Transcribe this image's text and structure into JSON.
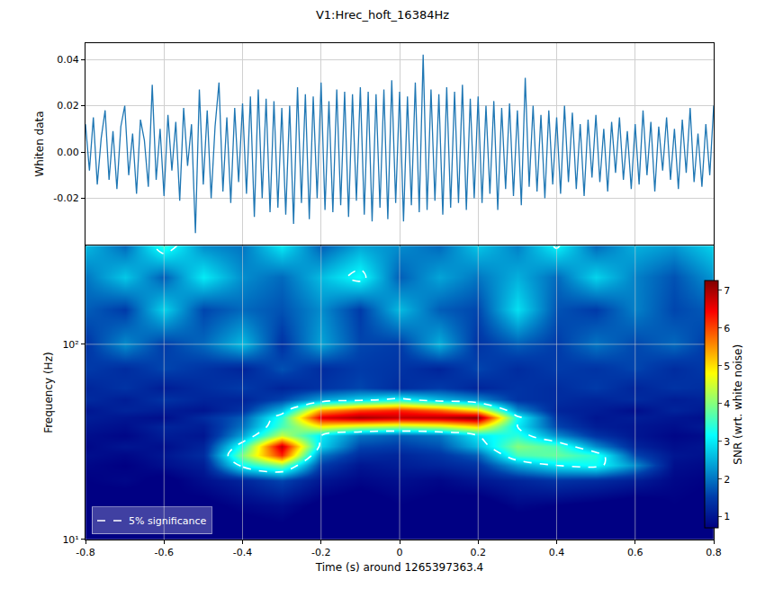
{
  "chart_data": [
    {
      "type": "line",
      "title": "V1:Hrec_hoft_16384Hz",
      "y_label": "Whiten data",
      "color": "#1f77b4",
      "x": [
        -0.8,
        -0.79,
        -0.78,
        -0.77,
        -0.76,
        -0.75,
        -0.74,
        -0.73,
        -0.72,
        -0.71,
        -0.7,
        -0.69,
        -0.68,
        -0.67,
        -0.66,
        -0.65,
        -0.64,
        -0.63,
        -0.62,
        -0.61,
        -0.6,
        -0.59,
        -0.58,
        -0.57,
        -0.56,
        -0.55,
        -0.54,
        -0.53,
        -0.52,
        -0.51,
        -0.5,
        -0.49,
        -0.48,
        -0.47,
        -0.46,
        -0.45,
        -0.44,
        -0.43,
        -0.42,
        -0.41,
        -0.4,
        -0.39,
        -0.38,
        -0.37,
        -0.36,
        -0.35,
        -0.34,
        -0.33,
        -0.32,
        -0.31,
        -0.3,
        -0.29,
        -0.28,
        -0.27,
        -0.26,
        -0.25,
        -0.24,
        -0.23,
        -0.22,
        -0.21,
        -0.2,
        -0.19,
        -0.18,
        -0.17,
        -0.16,
        -0.15,
        -0.14,
        -0.13,
        -0.12,
        -0.11,
        -0.1,
        -0.09,
        -0.08,
        -0.07,
        -0.06,
        -0.05,
        -0.04,
        -0.03,
        -0.02,
        -0.01,
        0,
        0.01,
        0.02,
        0.03,
        0.04,
        0.05,
        0.06,
        0.07,
        0.08,
        0.09,
        0.1,
        0.11,
        0.12,
        0.13,
        0.14,
        0.15,
        0.16,
        0.17,
        0.18,
        0.19,
        0.2,
        0.21,
        0.22,
        0.23,
        0.24,
        0.25,
        0.26,
        0.27,
        0.28,
        0.29,
        0.3,
        0.31,
        0.32,
        0.33,
        0.34,
        0.35,
        0.36,
        0.37,
        0.38,
        0.39,
        0.4,
        0.41,
        0.42,
        0.43,
        0.44,
        0.45,
        0.46,
        0.47,
        0.48,
        0.49,
        0.5,
        0.51,
        0.52,
        0.53,
        0.54,
        0.55,
        0.56,
        0.57,
        0.58,
        0.59,
        0.6,
        0.61,
        0.62,
        0.63,
        0.64,
        0.65,
        0.66,
        0.67,
        0.68,
        0.69,
        0.7,
        0.71,
        0.72,
        0.73,
        0.74,
        0.75,
        0.76,
        0.77,
        0.78,
        0.79,
        0.8
      ],
      "values": [
        0.012,
        -0.008,
        0.015,
        -0.014,
        0.006,
        0.018,
        -0.012,
        0.009,
        -0.016,
        0.011,
        0.02,
        -0.01,
        0.008,
        -0.018,
        0.014,
        0.005,
        -0.015,
        0.029,
        -0.012,
        0.01,
        -0.019,
        0.016,
        -0.008,
        0.013,
        -0.021,
        0.019,
        -0.006,
        0.012,
        -0.035,
        0.027,
        -0.014,
        0.018,
        -0.02,
        0.011,
        0.03,
        -0.017,
        0.015,
        -0.022,
        0.019,
        -0.013,
        0.021,
        -0.018,
        0.024,
        -0.028,
        0.027,
        -0.02,
        0.023,
        -0.026,
        0.022,
        -0.024,
        0.019,
        -0.027,
        0.02,
        -0.031,
        0.028,
        -0.022,
        0.025,
        -0.029,
        0.024,
        -0.02,
        0.03,
        -0.025,
        0.022,
        -0.026,
        0.027,
        -0.023,
        0.026,
        -0.028,
        0.025,
        -0.021,
        0.028,
        -0.027,
        0.026,
        -0.03,
        0.025,
        -0.024,
        0.027,
        -0.029,
        0.031,
        -0.022,
        0.026,
        -0.03,
        0.024,
        -0.023,
        0.03,
        -0.026,
        0.042,
        -0.025,
        0.027,
        -0.021,
        0.025,
        -0.027,
        0.028,
        -0.024,
        0.026,
        -0.022,
        0.029,
        -0.025,
        0.023,
        -0.02,
        0.024,
        -0.022,
        0.02,
        -0.018,
        0.022,
        -0.025,
        0.019,
        -0.016,
        0.021,
        -0.019,
        0.018,
        -0.023,
        0.032,
        -0.015,
        0.02,
        -0.017,
        0.016,
        -0.02,
        0.018,
        -0.014,
        0.015,
        -0.018,
        0.02,
        -0.013,
        0.017,
        -0.016,
        0.012,
        -0.019,
        0.014,
        -0.011,
        0.016,
        -0.013,
        0.01,
        -0.017,
        0.013,
        -0.009,
        0.015,
        -0.012,
        0.009,
        -0.016,
        0.012,
        -0.014,
        0.018,
        -0.01,
        0.013,
        -0.017,
        0.011,
        -0.008,
        0.015,
        -0.012,
        0.01,
        -0.016,
        0.014,
        -0.009,
        0.019,
        -0.013,
        0.008,
        -0.015,
        0.012,
        -0.01,
        0.02
      ],
      "xlim": [
        -0.8,
        0.8
      ],
      "xticks": [
        -0.8,
        -0.6,
        -0.4,
        -0.2,
        0,
        0.2,
        0.4,
        0.6,
        0.8
      ],
      "ylim": [
        -0.04,
        0.047
      ],
      "yticks": [
        -0.02,
        {
          "value": 0,
          "label": "0.00"
        },
        0.02,
        0.04
      ],
      "grid": true,
      "tick_labels": "y"
    },
    {
      "type": "heatmap",
      "x_label": "Time (s) around 1265397363.4",
      "y_label": "Frequency (Hz)",
      "x": [
        -0.8,
        -0.7,
        -0.6,
        -0.5,
        -0.4,
        -0.3,
        -0.2,
        -0.1,
        0,
        0.1,
        0.2,
        0.3,
        0.4,
        0.5,
        0.6,
        0.7,
        0.8
      ],
      "y": [
        10,
        15,
        20,
        24,
        27,
        30,
        34,
        38,
        42,
        46,
        52,
        60,
        75,
        100,
        150,
        220,
        320
      ],
      "z": [
        [
          0.4,
          0.3,
          0.5,
          0.3,
          0.4,
          0.5,
          0.3,
          0.4,
          0.3,
          0.5,
          0.4,
          0.3,
          0.4,
          0.5,
          0.3,
          0.4,
          0.3
        ],
        [
          0.6,
          0.5,
          0.7,
          0.6,
          0.8,
          0.9,
          0.6,
          0.5,
          0.7,
          0.6,
          0.5,
          0.8,
          0.7,
          0.6,
          0.5,
          0.7,
          0.6
        ],
        [
          0.7,
          0.8,
          0.6,
          0.9,
          1.2,
          1.6,
          1.0,
          0.8,
          0.9,
          0.8,
          1.0,
          1.2,
          1.4,
          1.3,
          1.1,
          0.8,
          0.7
        ],
        [
          0.8,
          0.7,
          0.9,
          1.1,
          3.2,
          4.0,
          1.5,
          1.0,
          1.1,
          1.2,
          1.4,
          2.4,
          3.0,
          3.2,
          2.2,
          0.9,
          0.8
        ],
        [
          0.9,
          0.8,
          1.0,
          1.3,
          4.0,
          6.2,
          2.0,
          1.3,
          1.2,
          1.4,
          1.8,
          3.6,
          3.8,
          3.4,
          1.6,
          1.0,
          0.9
        ],
        [
          0.8,
          1.0,
          0.9,
          1.2,
          3.4,
          6.8,
          2.8,
          1.6,
          1.5,
          1.7,
          2.6,
          4.0,
          3.6,
          2.2,
          1.2,
          0.9,
          1.0
        ],
        [
          0.9,
          0.8,
          1.1,
          1.0,
          2.4,
          4.4,
          3.0,
          2.0,
          1.8,
          2.0,
          3.0,
          3.4,
          2.2,
          1.4,
          1.0,
          0.8,
          0.9
        ],
        [
          1.0,
          0.9,
          1.2,
          1.1,
          2.0,
          3.6,
          4.8,
          4.4,
          4.2,
          4.4,
          5.0,
          3.0,
          1.6,
          1.1,
          1.0,
          0.9,
          1.1
        ],
        [
          1.1,
          1.0,
          0.9,
          1.3,
          1.8,
          3.4,
          6.6,
          7.0,
          6.8,
          6.9,
          7.2,
          3.2,
          1.4,
          1.0,
          1.1,
          1.0,
          0.9
        ],
        [
          1.0,
          1.2,
          1.1,
          1.0,
          1.4,
          2.6,
          5.4,
          6.0,
          6.2,
          5.8,
          5.0,
          2.2,
          1.2,
          1.1,
          0.9,
          1.2,
          1.0
        ],
        [
          1.3,
          1.1,
          1.4,
          1.2,
          1.2,
          1.6,
          2.4,
          2.8,
          3.2,
          2.6,
          2.2,
          1.4,
          1.3,
          1.2,
          1.3,
          1.1,
          1.2
        ],
        [
          1.2,
          1.4,
          1.1,
          1.3,
          1.5,
          1.2,
          1.4,
          1.6,
          1.3,
          1.5,
          1.2,
          1.4,
          1.3,
          1.5,
          1.2,
          1.4,
          1.3
        ],
        [
          1.5,
          1.3,
          1.6,
          1.4,
          1.2,
          1.7,
          1.3,
          1.5,
          1.4,
          1.2,
          1.6,
          1.3,
          1.5,
          1.4,
          1.6,
          1.3,
          1.5
        ],
        [
          1.4,
          2.2,
          1.5,
          1.9,
          2.6,
          1.4,
          2.4,
          1.6,
          1.5,
          2.5,
          1.4,
          1.8,
          1.5,
          2.0,
          1.6,
          1.9,
          1.4
        ],
        [
          1.8,
          1.5,
          2.8,
          1.6,
          1.9,
          1.7,
          2.2,
          1.5,
          2.6,
          1.8,
          1.6,
          2.9,
          1.7,
          1.5,
          2.1,
          1.6,
          1.8
        ],
        [
          2.0,
          2.7,
          1.8,
          3.0,
          2.2,
          1.9,
          2.6,
          3.2,
          1.8,
          2.4,
          2.0,
          2.5,
          1.9,
          2.8,
          2.1,
          1.7,
          2.3
        ],
        [
          2.6,
          1.9,
          3.4,
          2.2,
          2.0,
          3.0,
          1.8,
          2.4,
          2.2,
          1.9,
          2.7,
          2.1,
          3.1,
          1.9,
          2.5,
          2.3,
          2.8
        ]
      ],
      "zlim": [
        0.7,
        7.25
      ],
      "zticks": [
        1,
        2,
        3,
        4,
        5,
        6,
        7
      ],
      "colorbar_label": "SNR (wrt. white noise)",
      "contour": {
        "name": "5% significance",
        "level": 3.0,
        "color": "#ffffff",
        "line_style": "dashed"
      },
      "legend": "lower left",
      "log": "y",
      "xlim": [
        -0.8,
        0.8
      ],
      "xticks": [
        -0.8,
        -0.6,
        -0.4,
        -0.2,
        0,
        0.2,
        0.4,
        0.6,
        0.8
      ],
      "ylim": [
        10,
        320
      ],
      "yticks": [
        {
          "value": 10,
          "label": "10¹"
        },
        {
          "value": 100,
          "label": "10²"
        }
      ],
      "grid": true
    }
  ]
}
